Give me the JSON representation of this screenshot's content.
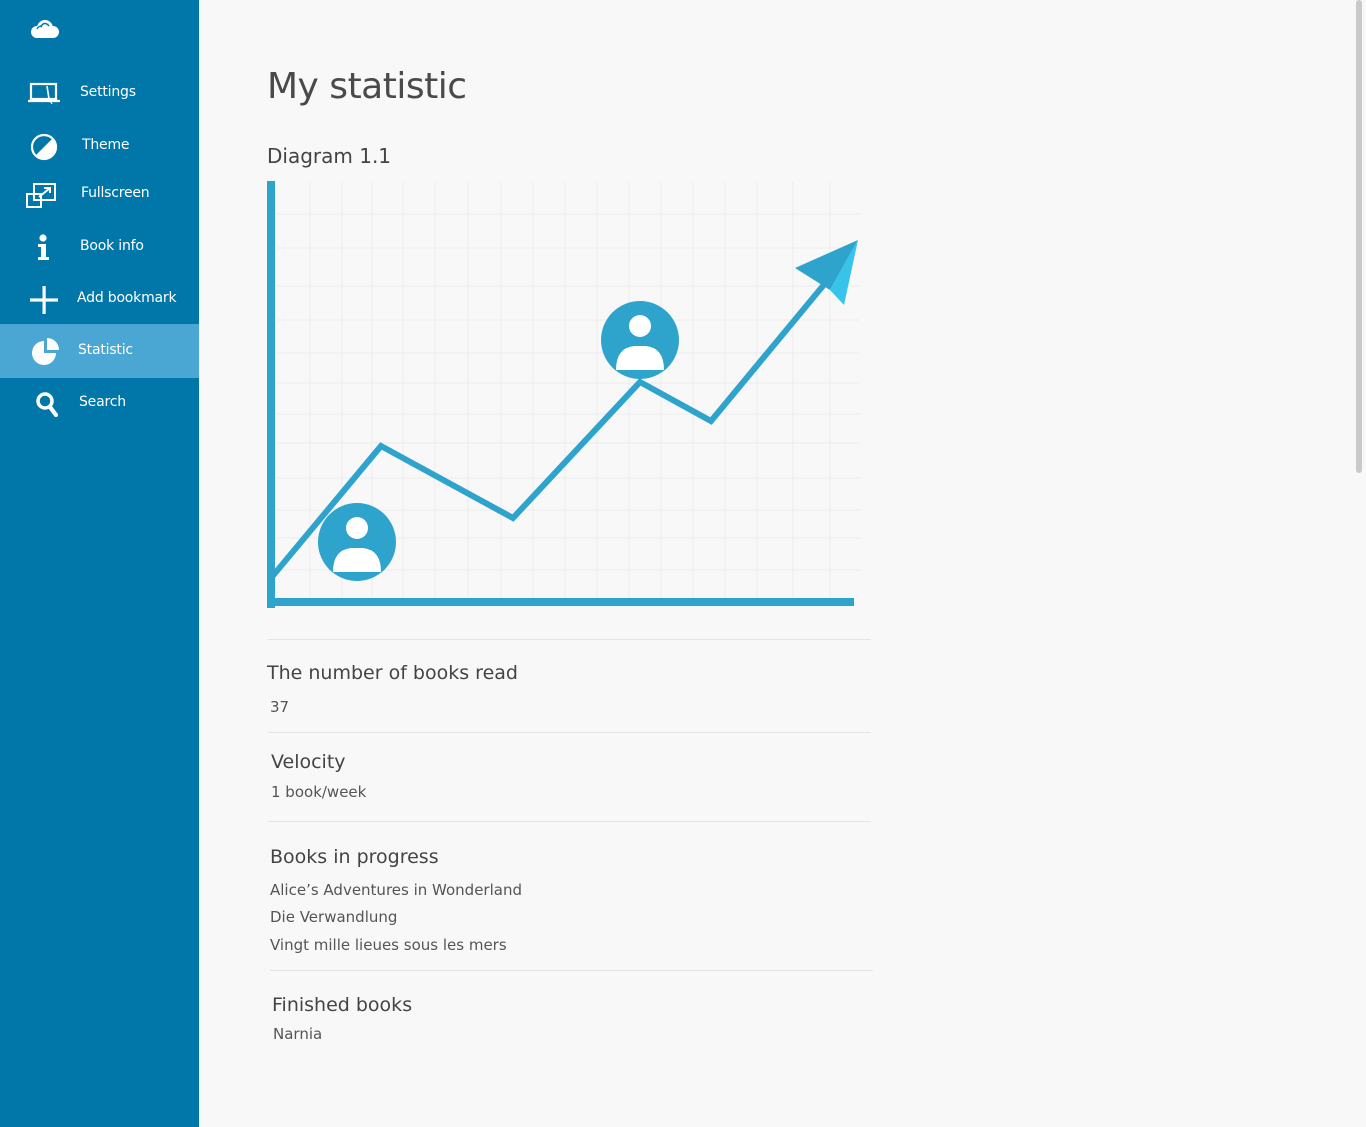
{
  "sidebar": {
    "logo_icon": "cloud-icon",
    "items": [
      {
        "label": "Settings",
        "icon": "laptop-settings-icon"
      },
      {
        "label": "Theme",
        "icon": "half-circle-theme-icon"
      },
      {
        "label": "Fullscreen",
        "icon": "fullscreen-icon"
      },
      {
        "label": "Book info",
        "icon": "info-icon"
      },
      {
        "label": "Add bookmark",
        "icon": "plus-icon"
      },
      {
        "label": "Statistic",
        "icon": "pie-chart-icon",
        "active": true
      },
      {
        "label": "Search",
        "icon": "search-icon"
      }
    ]
  },
  "main": {
    "title": "My statistic",
    "diagram_title": "Diagram 1.1",
    "stats": {
      "books_read": {
        "title": "The number of books read",
        "value": "37"
      },
      "velocity": {
        "title": "Velocity",
        "value": "1 book/week"
      },
      "in_progress": {
        "title": "Books in progress",
        "books": [
          "Alice’s Adventures in Wonderland",
          "Die Verwandlung",
          "Vingt mille lieues sous les mers"
        ]
      },
      "finished": {
        "title": "Finished books",
        "books": [
          "Narnia"
        ]
      }
    }
  },
  "colors": {
    "sidebar_bg": "#0077a8",
    "sidebar_active": "#4aa6d3",
    "chart_line": "#2ea3cc",
    "arrow_light": "#38c4ea",
    "background": "#f8f8f8"
  }
}
